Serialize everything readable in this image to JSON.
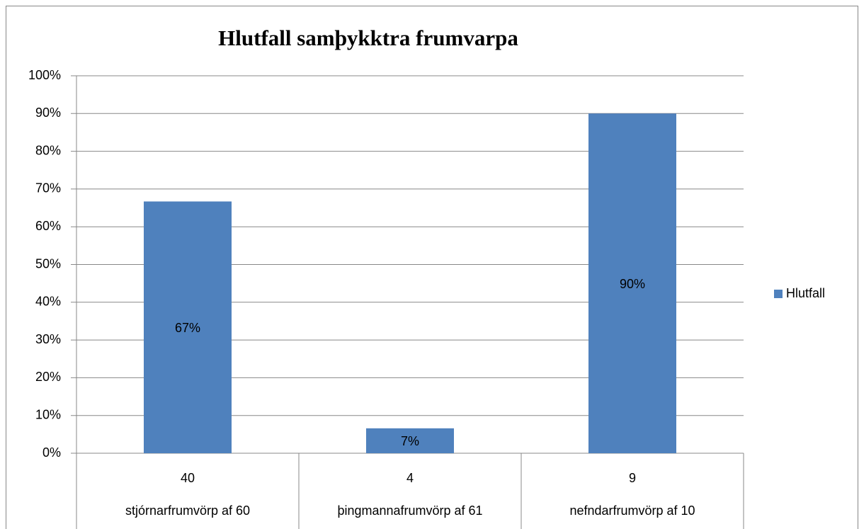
{
  "chart_data": {
    "type": "bar",
    "title": "Hlutfall samþykktra frumvarpa",
    "categories": [
      "40",
      "4",
      "9"
    ],
    "subcategories": [
      "stjórnarfrumvörp af 60",
      "þingmannafrumvörp af 61",
      "nefndarfrumvörp af 10"
    ],
    "series": [
      {
        "name": "Hlutfall",
        "color": "#4f81bd",
        "values": [
          66.7,
          6.6,
          90
        ],
        "value_labels": [
          "67%",
          "7%",
          "90%"
        ]
      }
    ],
    "ylim": [
      0,
      100
    ],
    "yticks": [
      {
        "value": 0,
        "label": "0%"
      },
      {
        "value": 10,
        "label": "10%"
      },
      {
        "value": 20,
        "label": "20%"
      },
      {
        "value": 30,
        "label": "30%"
      },
      {
        "value": 40,
        "label": "40%"
      },
      {
        "value": 50,
        "label": "50%"
      },
      {
        "value": 60,
        "label": "60%"
      },
      {
        "value": 70,
        "label": "70%"
      },
      {
        "value": 80,
        "label": "80%"
      },
      {
        "value": 90,
        "label": "90%"
      },
      {
        "value": 100,
        "label": "100%"
      }
    ],
    "grid": true,
    "legend": "right"
  }
}
